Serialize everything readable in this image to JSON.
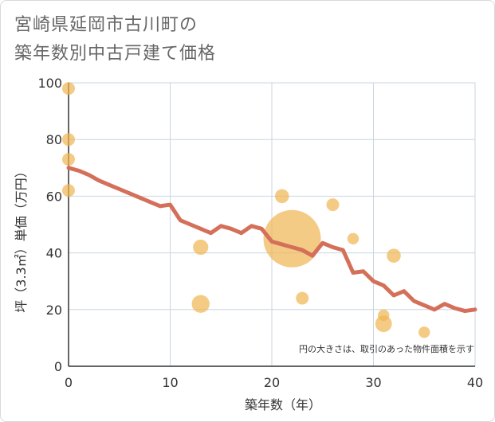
{
  "chart_data": {
    "type": "scatter+line",
    "title_line1": "宮崎県延岡市古川町の",
    "title_line2": "築年数別中古戸建て価格",
    "xlabel": "築年数（年）",
    "ylabel": "坪（3.3㎡）単価（万円）",
    "xlim": [
      0,
      40
    ],
    "ylim": [
      0,
      100
    ],
    "x_ticks": [
      "0",
      "10",
      "20",
      "30",
      "40"
    ],
    "y_ticks": [
      "0",
      "20",
      "40",
      "60",
      "80",
      "100"
    ],
    "note": "円の大きさは、取引のあった物件面積を示す",
    "scatter": [
      {
        "x": 0,
        "y": 98,
        "size": 1
      },
      {
        "x": 0,
        "y": 80,
        "size": 1
      },
      {
        "x": 0,
        "y": 73,
        "size": 1
      },
      {
        "x": 0,
        "y": 62,
        "size": 1
      },
      {
        "x": 13,
        "y": 42,
        "size": 1.2
      },
      {
        "x": 13,
        "y": 22,
        "size": 1.4
      },
      {
        "x": 21,
        "y": 60,
        "size": 1.1
      },
      {
        "x": 22,
        "y": 45,
        "size": 4.5
      },
      {
        "x": 23,
        "y": 24,
        "size": 1
      },
      {
        "x": 26,
        "y": 57,
        "size": 1
      },
      {
        "x": 28,
        "y": 45,
        "size": 0.9
      },
      {
        "x": 31,
        "y": 18,
        "size": 0.9
      },
      {
        "x": 31,
        "y": 15,
        "size": 1.3
      },
      {
        "x": 32,
        "y": 39,
        "size": 1.1
      },
      {
        "x": 35,
        "y": 12,
        "size": 0.9
      }
    ],
    "line": {
      "x": [
        0,
        1,
        2,
        3,
        4,
        5,
        6,
        7,
        8,
        9,
        10,
        11,
        12,
        13,
        14,
        15,
        16,
        17,
        18,
        19,
        20,
        21,
        22,
        23,
        24,
        25,
        26,
        27,
        28,
        29,
        30,
        31,
        32,
        33,
        34,
        35,
        36,
        37,
        38,
        39,
        40
      ],
      "y": [
        70,
        69,
        67.5,
        65.5,
        64,
        62.5,
        61,
        59.5,
        58,
        56.5,
        57,
        51.5,
        50,
        48.5,
        47,
        49.5,
        48.5,
        47,
        49.5,
        48.5,
        44,
        43,
        42,
        41,
        39,
        43.5,
        42,
        41,
        33,
        33.5,
        30,
        28.5,
        25,
        26.5,
        23,
        21.5,
        20,
        22,
        20.5,
        19.5,
        20
      ]
    },
    "colors": {
      "scatter": "#f0b550",
      "line": "#d4705a",
      "grid": "#c8d6e2",
      "axis": "#333333"
    }
  }
}
